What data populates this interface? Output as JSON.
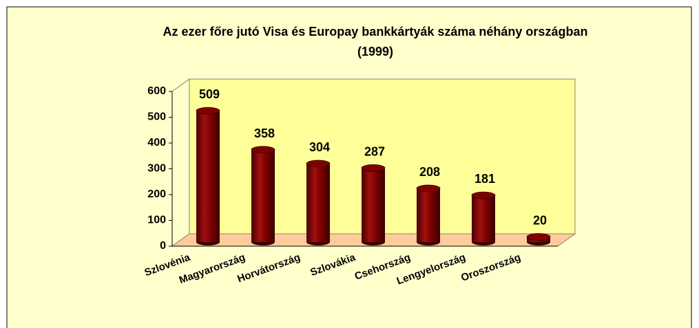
{
  "chart_data": {
    "type": "bar",
    "title": [
      "Az ezer főre jutó Visa és Europay bankkártyák száma néhány  országban",
      "(1999)"
    ],
    "categories": [
      "Szlovénia",
      "Magyarország",
      "Horvátország",
      "Szlovákia",
      "Csehország",
      "Lengyelország",
      "Oroszország"
    ],
    "values": [
      509,
      358,
      304,
      287,
      208,
      181,
      20
    ],
    "color": "#800000",
    "ylim": [
      0,
      600
    ],
    "yticks": [
      0,
      100,
      200,
      300,
      400,
      500,
      600
    ],
    "grid": false
  }
}
